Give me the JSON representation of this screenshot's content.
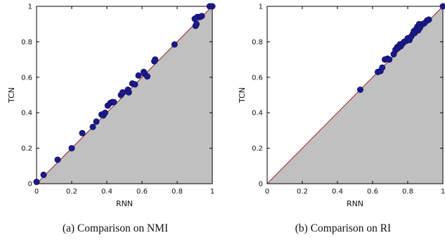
{
  "chart_data": [
    {
      "type": "scatter",
      "caption": "(a) Comparison on NMI",
      "xlabel": "RNN",
      "ylabel": "TCN",
      "xlim": [
        0,
        1
      ],
      "ylim": [
        0,
        1
      ],
      "xticks": [
        "0",
        "0.2",
        "0.4",
        "0.6",
        "0.8",
        "1"
      ],
      "yticks": [
        "0",
        "0.2",
        "0.4",
        "0.6",
        "0.8",
        "1"
      ],
      "grid": false,
      "diagonal": true,
      "shade": "below-diagonal",
      "series": [
        {
          "points": [
            [
              0.0,
              0.01
            ],
            [
              0.04,
              0.05
            ],
            [
              0.12,
              0.135
            ],
            [
              0.2,
              0.2
            ],
            [
              0.26,
              0.285
            ],
            [
              0.32,
              0.32
            ],
            [
              0.34,
              0.35
            ],
            [
              0.37,
              0.39
            ],
            [
              0.38,
              0.385
            ],
            [
              0.39,
              0.4
            ],
            [
              0.405,
              0.44
            ],
            [
              0.42,
              0.455
            ],
            [
              0.43,
              0.46
            ],
            [
              0.44,
              0.46
            ],
            [
              0.48,
              0.5
            ],
            [
              0.49,
              0.515
            ],
            [
              0.52,
              0.53
            ],
            [
              0.525,
              0.515
            ],
            [
              0.545,
              0.565
            ],
            [
              0.56,
              0.56
            ],
            [
              0.58,
              0.61
            ],
            [
              0.61,
              0.63
            ],
            [
              0.615,
              0.62
            ],
            [
              0.63,
              0.605
            ],
            [
              0.67,
              0.69
            ],
            [
              0.675,
              0.7
            ],
            [
              0.785,
              0.785
            ],
            [
              0.9,
              0.93
            ],
            [
              0.905,
              0.89
            ],
            [
              0.91,
              0.9
            ],
            [
              0.915,
              0.94
            ],
            [
              0.93,
              0.94
            ],
            [
              0.94,
              0.945
            ],
            [
              0.985,
              1.0
            ],
            [
              1.0,
              1.0
            ]
          ]
        }
      ],
      "colors": {
        "points": "#1a1a8c",
        "diagonal": "#a12020",
        "shade": "#c0c0c0"
      }
    },
    {
      "type": "scatter",
      "caption": "(b) Comparison on RI",
      "xlabel": "RNN",
      "ylabel": "TCN",
      "xlim": [
        0,
        1
      ],
      "ylim": [
        0,
        1
      ],
      "xticks": [
        "0",
        "0.2",
        "0.4",
        "0.6",
        "0.8",
        "1"
      ],
      "yticks": [
        "0",
        "0.2",
        "0.4",
        "0.6",
        "0.8",
        "1"
      ],
      "grid": false,
      "diagonal": true,
      "shade": "below-diagonal",
      "series": [
        {
          "points": [
            [
              0.53,
              0.53
            ],
            [
              0.63,
              0.63
            ],
            [
              0.645,
              0.635
            ],
            [
              0.655,
              0.655
            ],
            [
              0.67,
              0.7
            ],
            [
              0.685,
              0.705
            ],
            [
              0.695,
              0.7
            ],
            [
              0.72,
              0.73
            ],
            [
              0.73,
              0.755
            ],
            [
              0.74,
              0.77
            ],
            [
              0.745,
              0.765
            ],
            [
              0.755,
              0.785
            ],
            [
              0.76,
              0.775
            ],
            [
              0.77,
              0.79
            ],
            [
              0.78,
              0.8
            ],
            [
              0.79,
              0.805
            ],
            [
              0.8,
              0.82
            ],
            [
              0.81,
              0.81
            ],
            [
              0.82,
              0.83
            ],
            [
              0.83,
              0.845
            ],
            [
              0.835,
              0.86
            ],
            [
              0.84,
              0.85
            ],
            [
              0.85,
              0.875
            ],
            [
              0.855,
              0.885
            ],
            [
              0.86,
              0.865
            ],
            [
              0.865,
              0.9
            ],
            [
              0.87,
              0.88
            ],
            [
              0.885,
              0.9
            ],
            [
              0.895,
              0.905
            ],
            [
              0.91,
              0.92
            ],
            [
              0.92,
              0.925
            ],
            [
              1.0,
              1.0
            ]
          ]
        }
      ],
      "colors": {
        "points": "#1a1a8c",
        "diagonal": "#a12020",
        "shade": "#c0c0c0"
      }
    }
  ]
}
